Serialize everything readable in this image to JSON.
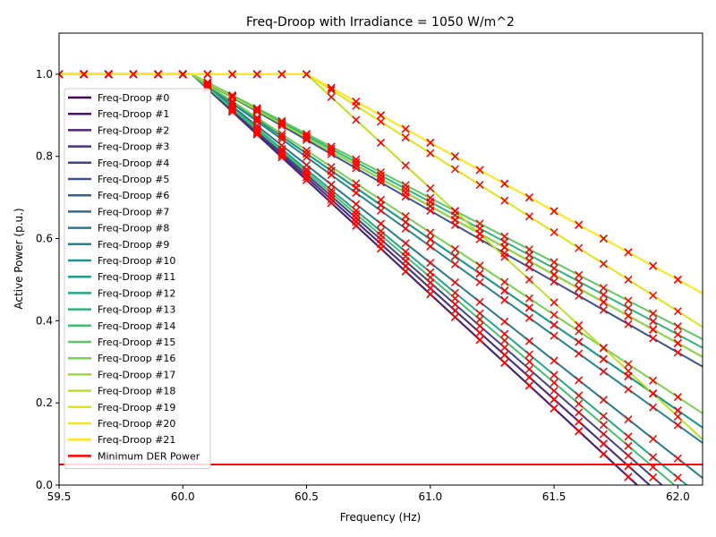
{
  "chart_data": {
    "type": "line",
    "title": "Freq-Droop with Irradiance = 1050 W/m^2",
    "xlabel": "Frequency (Hz)",
    "ylabel": "Active Power (p.u.)",
    "xlim": [
      59.5,
      62.1
    ],
    "ylim": [
      0.0,
      1.1
    ],
    "xticks": [
      59.5,
      60.0,
      60.5,
      61.0,
      61.5,
      62.0
    ],
    "xtick_labels": [
      "59.5",
      "60.0",
      "60.5",
      "61.0",
      "61.5",
      "62.0"
    ],
    "yticks": [
      0.0,
      0.2,
      0.4,
      0.6,
      0.8,
      1.0
    ],
    "ytick_labels": [
      "0.0",
      "0.2",
      "0.4",
      "0.6",
      "0.8",
      "1.0"
    ],
    "grid": false,
    "legend_position": "left",
    "marker": "x",
    "marker_color": "#ff0000",
    "curve_model": "P = 1 for f <= knee; P = 1 - (f - knee) / span for f > knee; sampled every 0.1 Hz",
    "sample_step_hz": 0.1,
    "series": [
      {
        "name": "Freq-Droop #0",
        "knee": 60.036,
        "span": 1.8,
        "color": "#440154"
      },
      {
        "name": "Freq-Droop #1",
        "knee": 60.036,
        "span": 1.85,
        "color": "#471365"
      },
      {
        "name": "Freq-Droop #2",
        "knee": 60.036,
        "span": 1.8,
        "color": "#482475"
      },
      {
        "name": "Freq-Droop #3",
        "knee": 60.036,
        "span": 1.85,
        "color": "#463480"
      },
      {
        "name": "Freq-Droop #4",
        "knee": 60.036,
        "span": 1.9,
        "color": "#414487"
      },
      {
        "name": "Freq-Droop #5",
        "knee": 60.036,
        "span": 2.9,
        "color": "#3b528b"
      },
      {
        "name": "Freq-Droop #6",
        "knee": 60.036,
        "span": 3.0,
        "color": "#355f8d"
      },
      {
        "name": "Freq-Droop #7",
        "knee": 60.036,
        "span": 2.4,
        "color": "#2f6c8e"
      },
      {
        "name": "Freq-Droop #8",
        "knee": 60.036,
        "span": 2.1,
        "color": "#2a788e"
      },
      {
        "name": "Freq-Droop #9",
        "knee": 60.036,
        "span": 2.3,
        "color": "#25848e"
      },
      {
        "name": "Freq-Droop #10",
        "knee": 60.036,
        "span": 3.0,
        "color": "#21918c"
      },
      {
        "name": "Freq-Droop #11",
        "knee": 60.036,
        "span": 2.4,
        "color": "#1e9c89"
      },
      {
        "name": "Freq-Droop #12",
        "knee": 60.036,
        "span": 2.0,
        "color": "#22a884"
      },
      {
        "name": "Freq-Droop #13",
        "knee": 60.036,
        "span": 3.1,
        "color": "#2fb47c"
      },
      {
        "name": "Freq-Droop #14",
        "knee": 60.036,
        "span": 1.95,
        "color": "#44bf70"
      },
      {
        "name": "Freq-Droop #15",
        "knee": 60.036,
        "span": 3.2,
        "color": "#5ec962"
      },
      {
        "name": "Freq-Droop #16",
        "knee": 60.036,
        "span": 2.5,
        "color": "#7ad151"
      },
      {
        "name": "Freq-Droop #17",
        "knee": 60.036,
        "span": 3.0,
        "color": "#9bd93c"
      },
      {
        "name": "Freq-Droop #18",
        "knee": 60.5,
        "span": 1.8,
        "color": "#bddf26"
      },
      {
        "name": "Freq-Droop #19",
        "knee": 60.5,
        "span": 2.6,
        "color": "#dfe318"
      },
      {
        "name": "Freq-Droop #20",
        "knee": 60.5,
        "span": 3.0,
        "color": "#eee51c"
      },
      {
        "name": "Freq-Droop #21",
        "knee": 60.5,
        "span": 3.0,
        "color": "#fde725"
      }
    ],
    "reference_line": {
      "name": "Minimum DER Power",
      "y": 0.05,
      "color": "#ff0000"
    }
  }
}
